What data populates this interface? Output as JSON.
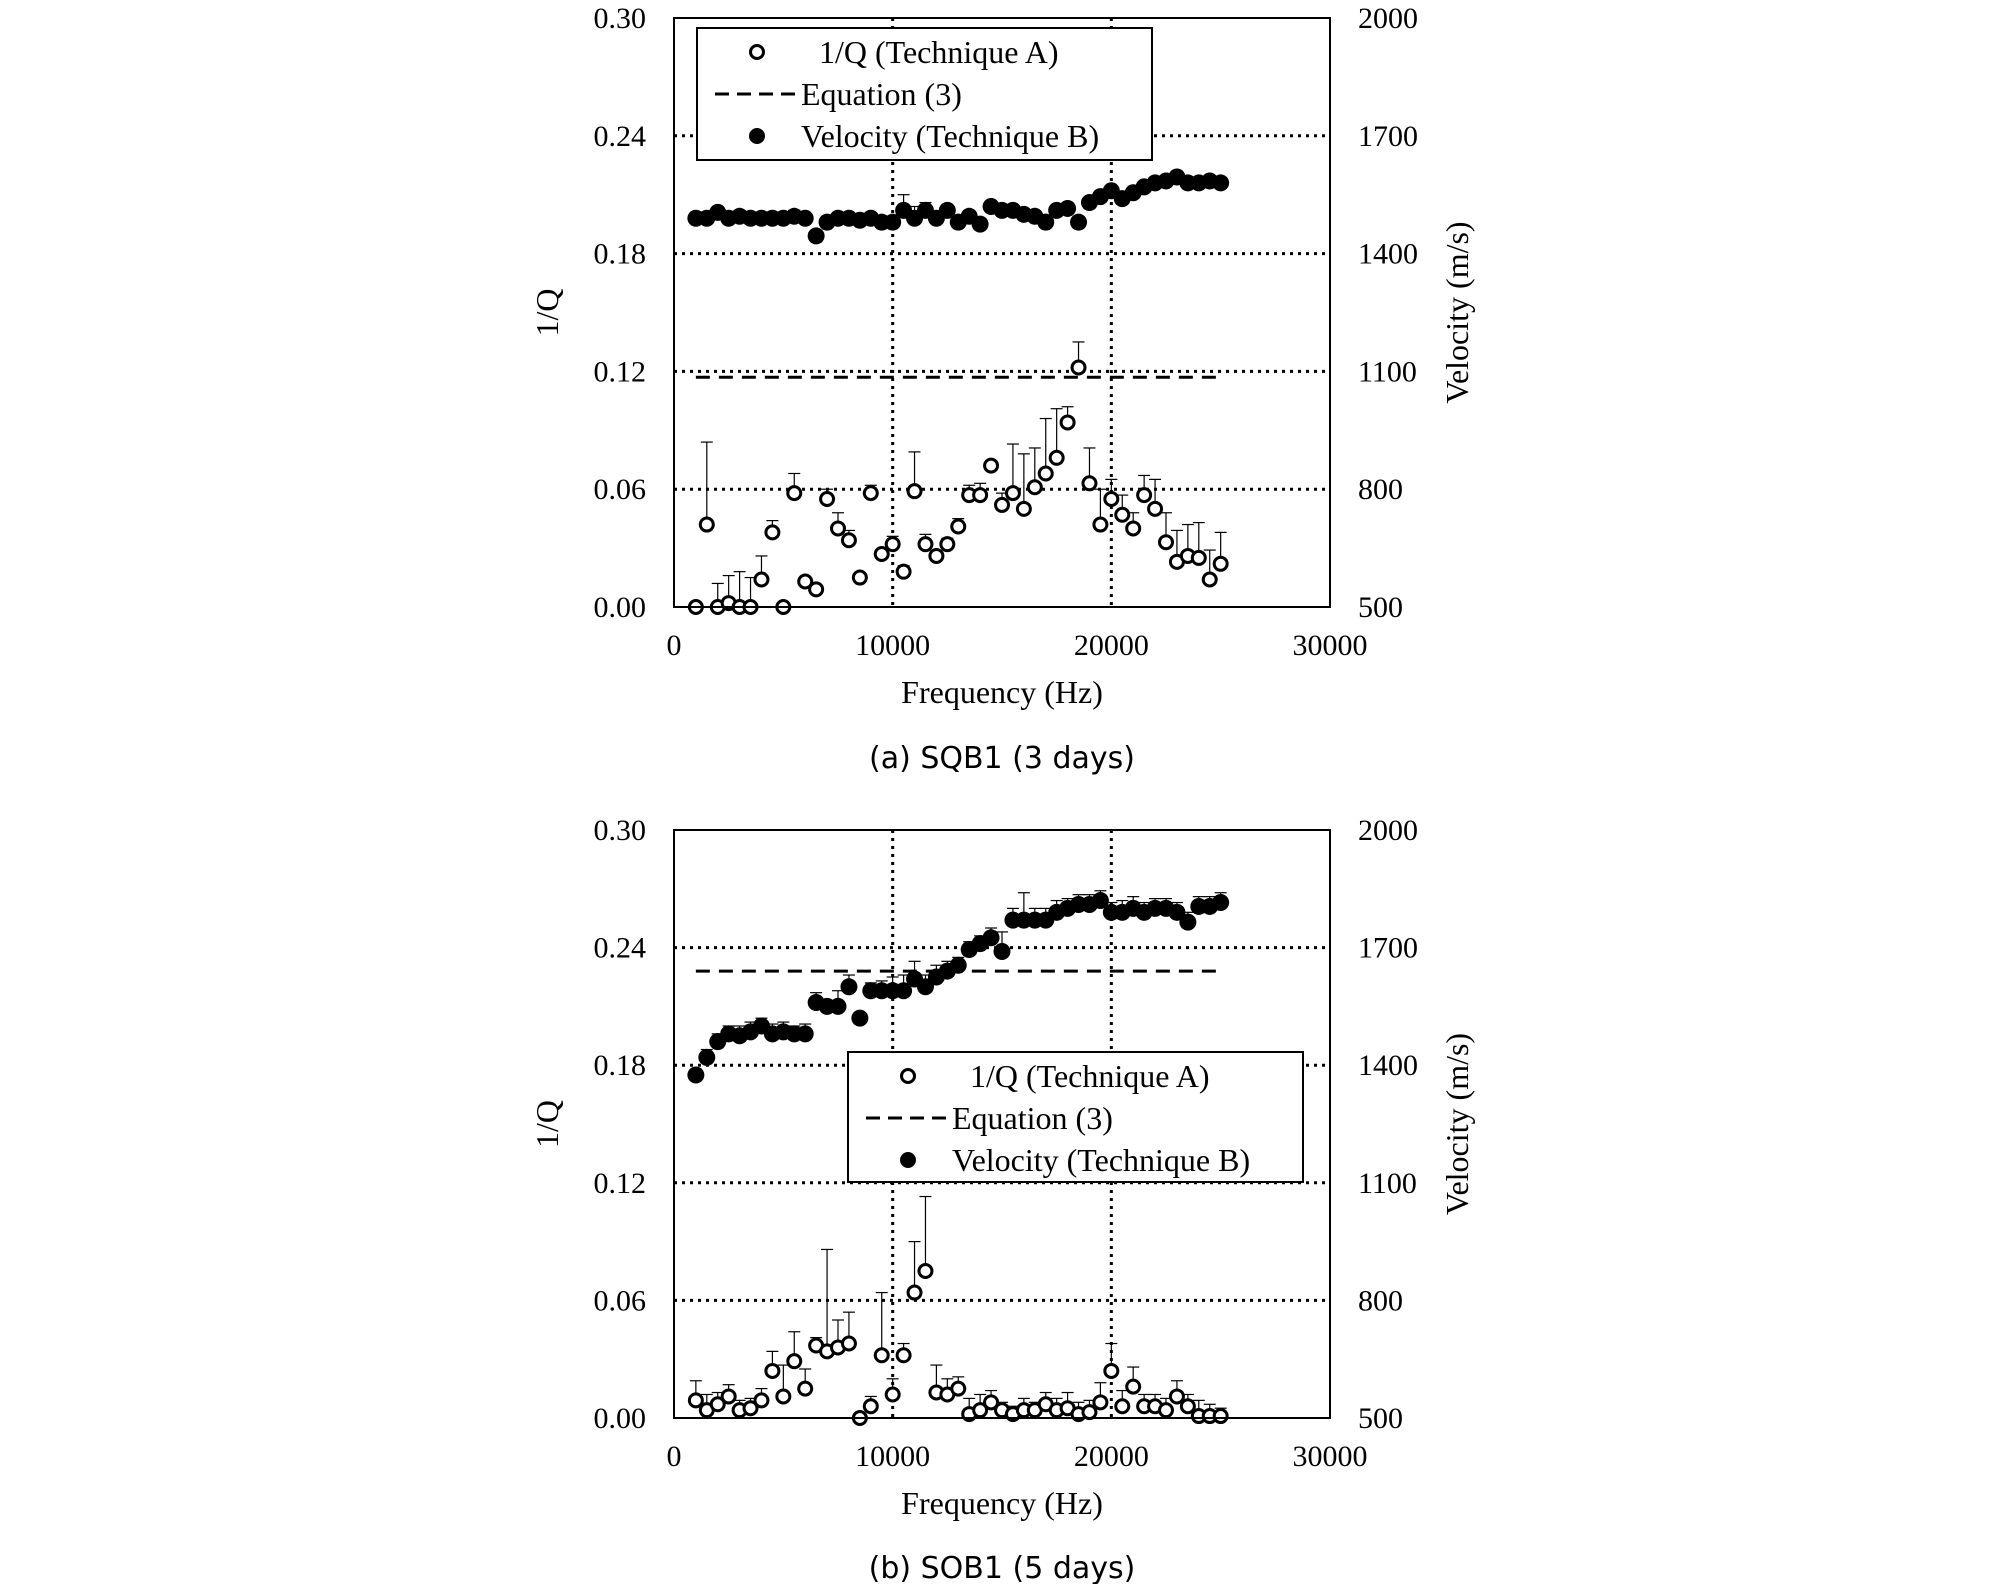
{
  "chart_data": [
    {
      "type": "scatter",
      "caption": "(a) SQB1 (3 days)",
      "xlabel": "Frequency (Hz)",
      "ylabel": "1/Q",
      "y2label": "Velocity (m/s)",
      "xlim": [
        0,
        30000
      ],
      "ylim": [
        0,
        0.3
      ],
      "y2lim": [
        500,
        2000
      ],
      "xticks": [
        "0",
        "10000",
        "20000",
        "30000"
      ],
      "yticks": [
        "0.00",
        "0.06",
        "0.12",
        "0.18",
        "0.24",
        "0.30"
      ],
      "y2ticks": [
        "500",
        "800",
        "1100",
        "1400",
        "1700",
        "2000"
      ],
      "grid": "dotted, at 10000 and 20000 Hz and 0.06-step",
      "legend_position": "top-left",
      "legend": [
        "1/Q (Technique A)",
        "Equation (3)",
        "Velocity (Technique B)"
      ],
      "equation_line": {
        "x": [
          1000,
          25000
        ],
        "y": 0.117
      },
      "series": [
        {
          "name": "1/Q (Technique A)",
          "axis": "left",
          "marker": "open-circle",
          "x": [
            1000,
            1500,
            2000,
            2500,
            3000,
            3500,
            4000,
            4500,
            5000,
            5500,
            6000,
            6500,
            7000,
            7500,
            8000,
            8500,
            9000,
            9500,
            10000,
            10500,
            11000,
            11500,
            12000,
            12500,
            13000,
            13500,
            14000,
            14500,
            15000,
            15500,
            16000,
            16500,
            17000,
            17500,
            18000,
            18500,
            19000,
            19500,
            20000,
            20500,
            21000,
            21500,
            22000,
            22500,
            23000,
            23500,
            24000,
            24500,
            25000
          ],
          "y": [
            0.0,
            0.042,
            0.0,
            0.002,
            0.0,
            0.0,
            0.014,
            0.038,
            0.0,
            0.058,
            0.013,
            0.009,
            0.055,
            0.04,
            0.034,
            0.015,
            0.058,
            0.027,
            0.032,
            0.018,
            0.059,
            0.032,
            0.026,
            0.032,
            0.041,
            0.057,
            0.057,
            0.072,
            0.052,
            0.058,
            0.05,
            0.061,
            0.068,
            0.076,
            0.094,
            0.122,
            0.063,
            0.042,
            0.055,
            0.047,
            0.04,
            0.057,
            0.05,
            0.033,
            0.023,
            0.026,
            0.025,
            0.014,
            0.022
          ],
          "err": [
            0.0,
            0.042,
            0.012,
            0.014,
            0.018,
            0.015,
            0.012,
            0.006,
            0.0,
            0.01,
            0.0,
            0.0,
            0.005,
            0.008,
            0.005,
            0.0,
            0.004,
            0.0,
            0.004,
            0.003,
            0.02,
            0.005,
            0.0,
            0.003,
            0.004,
            0.005,
            0.006,
            0.0,
            0.006,
            0.025,
            0.028,
            0.02,
            0.028,
            0.025,
            0.008,
            0.013,
            0.018,
            0.018,
            0.01,
            0.01,
            0.008,
            0.01,
            0.015,
            0.015,
            0.016,
            0.016,
            0.018,
            0.015,
            0.016
          ]
        },
        {
          "name": "Velocity (Technique B)",
          "axis": "right",
          "marker": "filled-circle",
          "x": [
            1000,
            1500,
            2000,
            2500,
            3000,
            3500,
            4000,
            4500,
            5000,
            5500,
            6000,
            6500,
            7000,
            7500,
            8000,
            8500,
            9000,
            9500,
            10000,
            10500,
            11000,
            11500,
            12000,
            12500,
            13000,
            13500,
            14000,
            14500,
            15000,
            15500,
            16000,
            16500,
            17000,
            17500,
            18000,
            18500,
            19000,
            19500,
            20000,
            20500,
            21000,
            21500,
            22000,
            22500,
            23000,
            23500,
            24000,
            24500,
            25000
          ],
          "y": [
            1490,
            1490,
            1505,
            1490,
            1495,
            1490,
            1490,
            1490,
            1490,
            1495,
            1490,
            1445,
            1480,
            1490,
            1490,
            1485,
            1490,
            1480,
            1480,
            1510,
            1490,
            1510,
            1490,
            1510,
            1480,
            1495,
            1475,
            1520,
            1510,
            1510,
            1500,
            1495,
            1480,
            1510,
            1515,
            1480,
            1530,
            1545,
            1560,
            1540,
            1555,
            1570,
            1580,
            1585,
            1595,
            1580,
            1580,
            1585,
            1580
          ],
          "err": [
            15,
            15,
            10,
            10,
            15,
            10,
            12,
            14,
            12,
            15,
            12,
            0,
            0,
            0,
            0,
            0,
            0,
            0,
            0,
            40,
            30,
            20,
            0,
            0,
            0,
            0,
            0,
            0,
            0,
            0,
            0,
            0,
            0,
            0,
            0,
            0,
            10,
            10,
            10,
            10,
            10,
            10,
            12,
            12,
            15,
            15,
            12,
            10,
            10
          ]
        }
      ]
    },
    {
      "type": "scatter",
      "caption": "(b) SOB1 (5 days)",
      "xlabel": "Frequency (Hz)",
      "ylabel": "1/Q",
      "y2label": "Velocity (m/s)",
      "xlim": [
        0,
        30000
      ],
      "ylim": [
        0,
        0.3
      ],
      "y2lim": [
        500,
        2000
      ],
      "xticks": [
        "0",
        "10000",
        "20000",
        "30000"
      ],
      "yticks": [
        "0.00",
        "0.06",
        "0.12",
        "0.18",
        "0.24",
        "0.30"
      ],
      "y2ticks": [
        "500",
        "800",
        "1100",
        "1400",
        "1700",
        "2000"
      ],
      "grid": "dotted, at 10000 and 20000 Hz and 0.06-step",
      "legend_position": "center-right",
      "legend": [
        "1/Q (Technique A)",
        "Equation (3)",
        "Velocity (Technique B)"
      ],
      "equation_line": {
        "x": [
          1000,
          25000
        ],
        "y": 0.228
      },
      "series": [
        {
          "name": "1/Q (Technique A)",
          "axis": "left",
          "marker": "open-circle",
          "x": [
            1000,
            1500,
            2000,
            2500,
            3000,
            3500,
            4000,
            4500,
            5000,
            5500,
            6000,
            6500,
            7000,
            7500,
            8000,
            8500,
            9000,
            9500,
            10000,
            10500,
            11000,
            11500,
            12000,
            12500,
            13000,
            13500,
            14000,
            14500,
            15000,
            15500,
            16000,
            16500,
            17000,
            17500,
            18000,
            18500,
            19000,
            19500,
            20000,
            20500,
            21000,
            21500,
            22000,
            22500,
            23000,
            23500,
            24000,
            24500,
            25000
          ],
          "y": [
            0.009,
            0.004,
            0.007,
            0.011,
            0.004,
            0.005,
            0.009,
            0.024,
            0.011,
            0.029,
            0.015,
            0.037,
            0.034,
            0.036,
            0.038,
            0.0,
            0.006,
            0.032,
            0.012,
            0.032,
            0.064,
            0.075,
            0.013,
            0.012,
            0.015,
            0.002,
            0.004,
            0.008,
            0.004,
            0.002,
            0.004,
            0.004,
            0.007,
            0.004,
            0.005,
            0.002,
            0.003,
            0.008,
            0.024,
            0.006,
            0.016,
            0.006,
            0.006,
            0.004,
            0.011,
            0.006,
            0.001,
            0.001,
            0.001
          ],
          "err": [
            0.01,
            0.008,
            0.006,
            0.006,
            0.005,
            0.005,
            0.006,
            0.01,
            0.016,
            0.015,
            0.01,
            0.004,
            0.052,
            0.014,
            0.016,
            0.0,
            0.005,
            0.032,
            0.008,
            0.006,
            0.026,
            0.038,
            0.014,
            0.008,
            0.006,
            0.008,
            0.008,
            0.006,
            0.004,
            0.004,
            0.006,
            0.004,
            0.006,
            0.006,
            0.008,
            0.006,
            0.006,
            0.01,
            0.014,
            0.008,
            0.01,
            0.006,
            0.006,
            0.006,
            0.008,
            0.006,
            0.008,
            0.006,
            0.004
          ]
        },
        {
          "name": "Velocity (Technique B)",
          "axis": "right",
          "marker": "filled-circle",
          "x": [
            1000,
            1500,
            2000,
            2500,
            3000,
            3500,
            4000,
            4500,
            5000,
            5500,
            6000,
            6500,
            7000,
            7500,
            8000,
            8500,
            9000,
            9500,
            10000,
            10500,
            11000,
            11500,
            12000,
            12500,
            13000,
            13500,
            14000,
            14500,
            15000,
            15500,
            16000,
            16500,
            17000,
            17500,
            18000,
            18500,
            19000,
            19500,
            20000,
            20500,
            21000,
            21500,
            22000,
            22500,
            23000,
            23500,
            24000,
            24500,
            25000
          ],
          "y": [
            1375,
            1420,
            1460,
            1480,
            1475,
            1485,
            1500,
            1480,
            1485,
            1480,
            1480,
            1560,
            1550,
            1550,
            1600,
            1520,
            1590,
            1590,
            1590,
            1590,
            1620,
            1600,
            1625,
            1640,
            1655,
            1695,
            1710,
            1725,
            1690,
            1770,
            1770,
            1770,
            1770,
            1790,
            1800,
            1810,
            1810,
            1820,
            1790,
            1790,
            1800,
            1790,
            1800,
            1800,
            1790,
            1765,
            1805,
            1805,
            1815
          ],
          "err": [
            15,
            20,
            20,
            20,
            25,
            25,
            20,
            25,
            25,
            20,
            25,
            25,
            0,
            40,
            30,
            0,
            20,
            25,
            35,
            40,
            45,
            30,
            30,
            25,
            20,
            20,
            20,
            25,
            50,
            30,
            70,
            30,
            30,
            30,
            25,
            25,
            25,
            25,
            25,
            30,
            30,
            25,
            25,
            25,
            25,
            25,
            25,
            25,
            25
          ]
        }
      ]
    }
  ]
}
